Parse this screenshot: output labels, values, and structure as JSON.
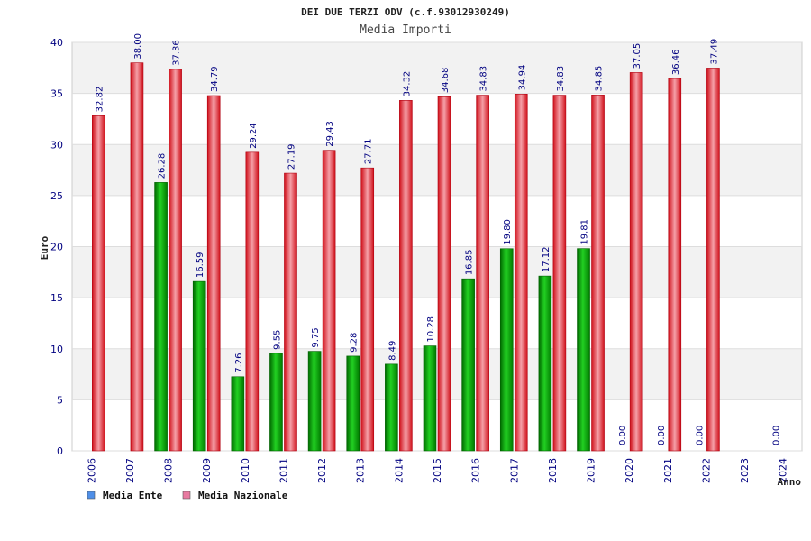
{
  "chart_data": {
    "type": "bar",
    "title": "DEI DUE TERZI ODV (c.f.93012930249)",
    "subtitle": "Media Importi",
    "xlabel": "Anno",
    "ylabel": "Euro",
    "ylim": [
      0,
      40
    ],
    "yticks": [
      "0",
      "5",
      "10",
      "15",
      "20",
      "25",
      "30",
      "35",
      "40"
    ],
    "grid": true,
    "legend_position": "bottom-left",
    "categories": [
      "2006",
      "2007",
      "2008",
      "2009",
      "2010",
      "2011",
      "2012",
      "2013",
      "2014",
      "2015",
      "2016",
      "2017",
      "2018",
      "2019",
      "2020",
      "2021",
      "2022",
      "2023",
      "2024"
    ],
    "series": [
      {
        "name": "Media Ente",
        "color": "#00b000",
        "legend_color": "#4f8fe8",
        "values": [
          null,
          null,
          26.28,
          16.59,
          7.26,
          9.55,
          9.75,
          9.28,
          8.49,
          10.28,
          16.85,
          19.8,
          17.12,
          19.81,
          0.0,
          0.0,
          0.0,
          null,
          0.0
        ],
        "labels": [
          "",
          "",
          "26.28",
          "16.59",
          "7.26",
          "9.55",
          "9.75",
          "9.28",
          "8.49",
          "10.28",
          "16.85",
          "19.80",
          "17.12",
          "19.81",
          "0.00",
          "0.00",
          "0.00",
          "",
          "0.00"
        ]
      },
      {
        "name": "Media Nazionale",
        "color": "#e8202a",
        "legend_color": "#e87aa0",
        "values": [
          32.82,
          38.0,
          37.36,
          34.79,
          29.24,
          27.19,
          29.43,
          27.71,
          34.32,
          34.68,
          34.83,
          34.94,
          34.83,
          34.85,
          37.05,
          36.46,
          37.49,
          null,
          null
        ],
        "labels": [
          "32.82",
          "38.00",
          "37.36",
          "34.79",
          "29.24",
          "27.19",
          "29.43",
          "27.71",
          "34.32",
          "34.68",
          "34.83",
          "34.94",
          "34.83",
          "34.85",
          "37.05",
          "36.46",
          "37.49",
          "",
          ""
        ]
      }
    ]
  }
}
